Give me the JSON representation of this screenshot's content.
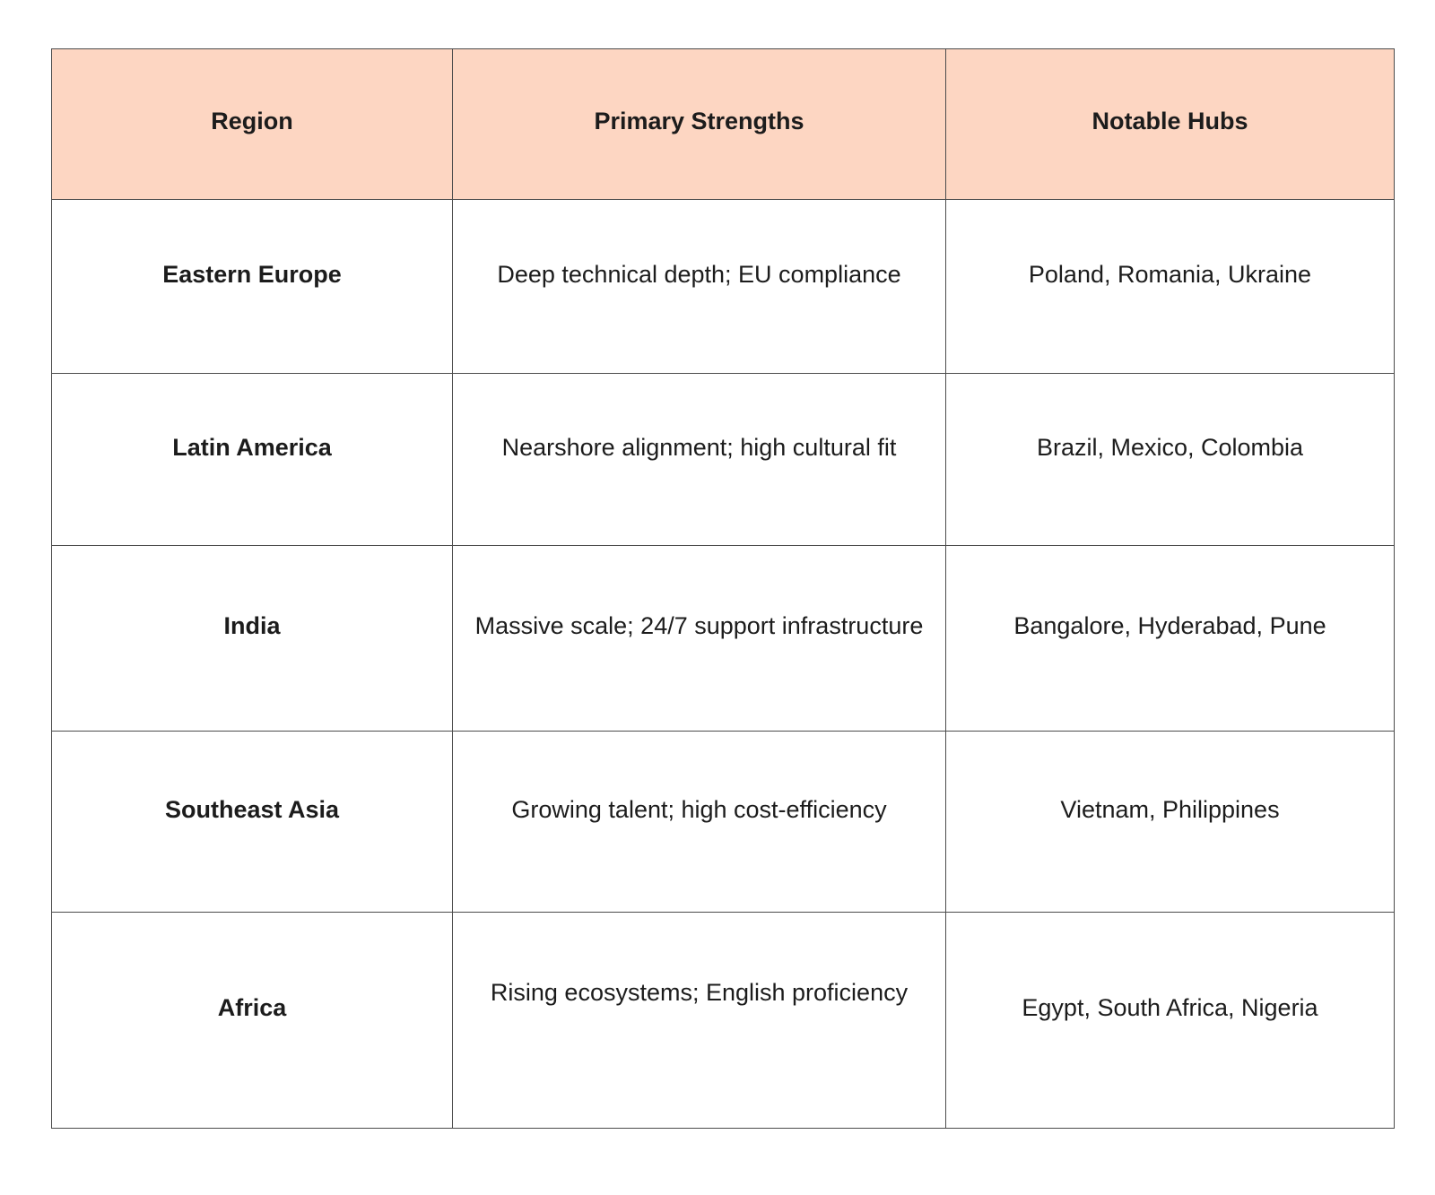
{
  "table": {
    "columns": [
      {
        "label": "Region"
      },
      {
        "label": "Primary Strengths"
      },
      {
        "label": "Notable Hubs"
      }
    ],
    "rows": [
      {
        "region": "Eastern Europe",
        "strengths": "Deep technical depth; EU compliance",
        "hubs": "Poland, Romania, Ukraine"
      },
      {
        "region": "Latin America",
        "strengths": "Nearshore alignment; high cultural fit",
        "hubs": "Brazil, Mexico, Colombia"
      },
      {
        "region": "India",
        "strengths": "Massive scale; 24/7 support infrastructure",
        "hubs": "Bangalore, Hyderabad, Pune"
      },
      {
        "region": "Southeast Asia",
        "strengths": "Growing talent; high cost-efficiency",
        "hubs": "Vietnam, Philippines"
      },
      {
        "region": "Africa",
        "strengths": "Rising ecosystems; English proficiency",
        "hubs": "Egypt, South Africa, Nigeria"
      }
    ],
    "colors": {
      "header_bg": "#fdd6c2",
      "border": "#4c4c4c",
      "text": "#1c1c1c",
      "page_bg": "#ffffff"
    }
  }
}
